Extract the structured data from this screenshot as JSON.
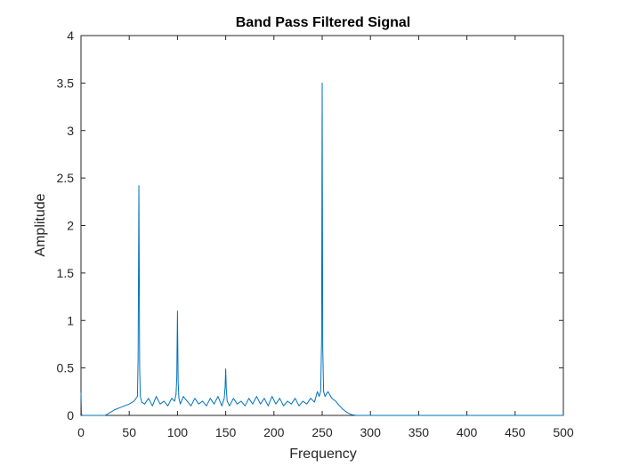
{
  "chart_data": {
    "type": "line",
    "title": "Band Pass Filtered Signal",
    "xlabel": "Frequency",
    "ylabel": "Amplitude",
    "xlim": [
      0,
      500
    ],
    "ylim": [
      0,
      4
    ],
    "xticks": [
      0,
      50,
      100,
      150,
      200,
      250,
      300,
      350,
      400,
      450,
      500
    ],
    "yticks": [
      0,
      0.5,
      1,
      1.5,
      2,
      2.5,
      3,
      3.5,
      4
    ],
    "xtick_labels": [
      "0",
      "50",
      "100",
      "150",
      "200",
      "250",
      "300",
      "350",
      "400",
      "450",
      "500"
    ],
    "ytick_labels": [
      "0",
      "0.5",
      "1",
      "1.5",
      "2",
      "2.5",
      "3",
      "3.5",
      "4"
    ],
    "grid": false,
    "line_color": "#0072BD",
    "series": [
      {
        "x": [
          0,
          0.5,
          1,
          25,
          30,
          35,
          40,
          45,
          50,
          55,
          57,
          58.5,
          59.2,
          60,
          60.8,
          61.5,
          63,
          66,
          70,
          74,
          78,
          82,
          86,
          90,
          94,
          97,
          98.5,
          99.3,
          100,
          100.7,
          101.5,
          103,
          106,
          110,
          114,
          118,
          122,
          126,
          130,
          134,
          138,
          142,
          146,
          148.5,
          149.4,
          150,
          150.6,
          151.5,
          154,
          158,
          162,
          166,
          170,
          174,
          178,
          182,
          186,
          190,
          194,
          198,
          202,
          206,
          210,
          214,
          218,
          222,
          226,
          230,
          234,
          238,
          242,
          245,
          247,
          248.5,
          249.4,
          250,
          250.6,
          251.5,
          253,
          256,
          260,
          264,
          268,
          272,
          276,
          280,
          285,
          300,
          350,
          400,
          450,
          500
        ],
        "y": [
          0.24,
          0.02,
          0.0,
          0.0,
          0.03,
          0.06,
          0.08,
          0.1,
          0.12,
          0.15,
          0.18,
          0.2,
          0.6,
          2.42,
          0.5,
          0.2,
          0.14,
          0.12,
          0.18,
          0.1,
          0.2,
          0.12,
          0.15,
          0.1,
          0.18,
          0.15,
          0.22,
          0.4,
          1.1,
          0.35,
          0.18,
          0.12,
          0.2,
          0.15,
          0.1,
          0.18,
          0.12,
          0.15,
          0.1,
          0.18,
          0.12,
          0.2,
          0.1,
          0.18,
          0.3,
          0.49,
          0.28,
          0.15,
          0.1,
          0.18,
          0.12,
          0.15,
          0.1,
          0.18,
          0.12,
          0.2,
          0.12,
          0.18,
          0.1,
          0.2,
          0.12,
          0.18,
          0.1,
          0.15,
          0.12,
          0.18,
          0.1,
          0.15,
          0.12,
          0.18,
          0.14,
          0.25,
          0.2,
          0.26,
          0.8,
          3.5,
          0.7,
          0.25,
          0.2,
          0.25,
          0.18,
          0.15,
          0.1,
          0.06,
          0.03,
          0.01,
          0.0,
          0.0,
          0.0,
          0.0,
          0.0,
          0.0
        ]
      }
    ]
  }
}
